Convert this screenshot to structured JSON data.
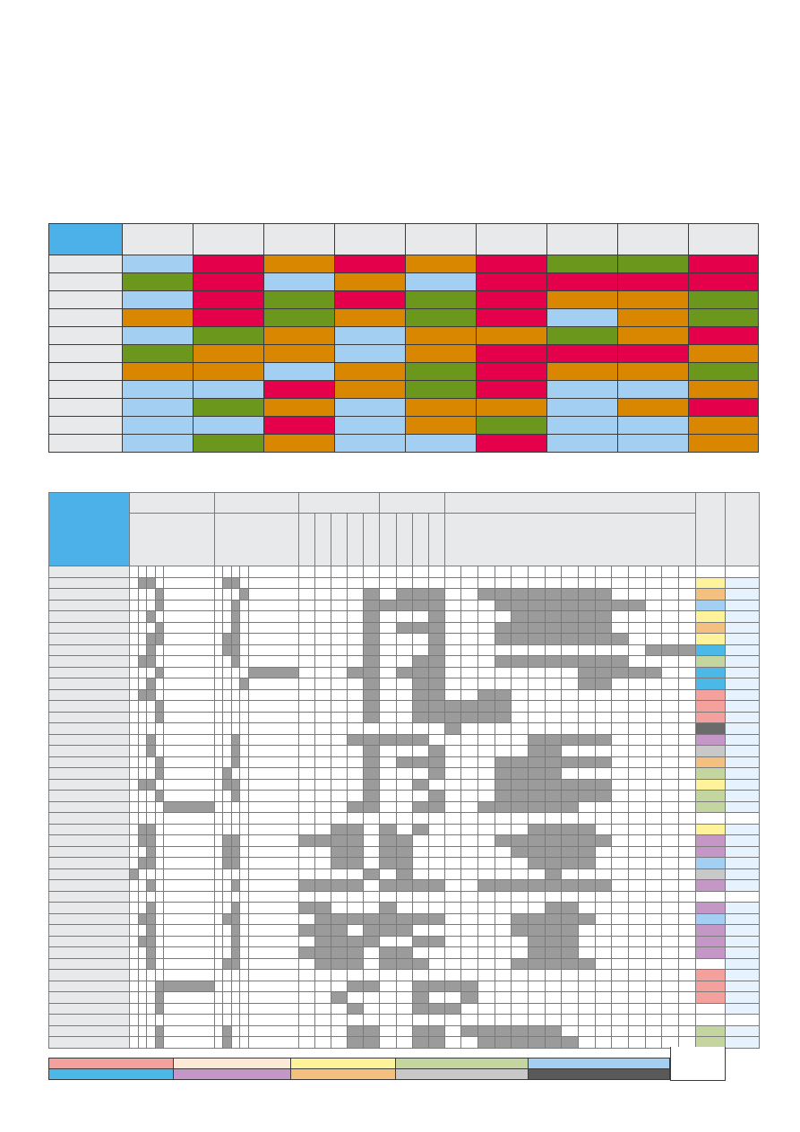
{
  "colors": {
    "light_blue": "#a3cff3",
    "red": "#e4004b",
    "orange": "#d98700",
    "green": "#6a971c",
    "header_gray": "#e8e9eb",
    "corner_blue": "#4bb1e8",
    "cell_gray": "#9b9b9b",
    "last_col_blue": "#e6f2fd"
  },
  "top_matrix": {
    "column_count": 9,
    "rows": [
      [
        "light_blue",
        "red",
        "orange",
        "red",
        "orange",
        "red",
        "green",
        "green",
        "red"
      ],
      [
        "green",
        "red",
        "light_blue",
        "orange",
        "light_blue",
        "red",
        "red",
        "red",
        "red"
      ],
      [
        "light_blue",
        "red",
        "green",
        "red",
        "green",
        "red",
        "orange",
        "orange",
        "green"
      ],
      [
        "orange",
        "red",
        "green",
        "orange",
        "green",
        "red",
        "light_blue",
        "orange",
        "green"
      ],
      [
        "light_blue",
        "green",
        "orange",
        "light_blue",
        "orange",
        "orange",
        "green",
        "orange",
        "red"
      ],
      [
        "green",
        "orange",
        "orange",
        "light_blue",
        "orange",
        "red",
        "red",
        "red",
        "orange"
      ],
      [
        "orange",
        "orange",
        "light_blue",
        "orange",
        "green",
        "red",
        "orange",
        "orange",
        "green"
      ],
      [
        "light_blue",
        "light_blue",
        "red",
        "orange",
        "green",
        "red",
        "light_blue",
        "light_blue",
        "orange"
      ],
      [
        "light_blue",
        "green",
        "orange",
        "light_blue",
        "orange",
        "orange",
        "light_blue",
        "orange",
        "red"
      ],
      [
        "light_blue",
        "light_blue",
        "red",
        "light_blue",
        "orange",
        "green",
        "light_blue",
        "light_blue",
        "orange"
      ],
      [
        "light_blue",
        "green",
        "orange",
        "light_blue",
        "light_blue",
        "red",
        "light_blue",
        "light_blue",
        "orange"
      ]
    ]
  },
  "bottom_matrix": {
    "row_count": 43,
    "column_count": 38,
    "swatch_colors": [
      "#ffffff",
      "#fef39a",
      "#f3c080",
      "#a3cff3",
      "#fef39a",
      "#f3c080",
      "#fef39a",
      "#4bb8e8",
      "#c5d5a0",
      "#4bb8e8",
      "#4bb8e8",
      "#f4a09c",
      "#f4a09c",
      "#f4a09c",
      "#6b6b6b",
      "#c497c6",
      "#c8c8c8",
      "#f3c080",
      "#c5d5a0",
      "#fef39a",
      "#c5d5a0",
      "#c5d5a0",
      "#ffffff",
      "#fef39a",
      "#c497c6",
      "#c497c6",
      "#a3cff3",
      "#c8c8c8",
      "#c497c6",
      "#ffffff",
      "#c497c6",
      "#a3cff3",
      "#c497c6",
      "#c497c6",
      "#c497c6",
      "#ffffff",
      "#f4a09c",
      "#f4a09c",
      "#f4a09c",
      "#ffffff",
      "#ffffff",
      "#c5d5a0",
      "#c5d5a0"
    ],
    "filled_cells": [
      [],
      [
        1,
        2,
        6,
        7
      ],
      [
        3,
        8,
        14,
        16,
        17,
        18,
        21,
        22,
        23,
        24,
        25,
        26,
        27,
        28
      ],
      [
        3,
        7,
        14,
        15,
        16,
        17,
        18,
        22,
        23,
        24,
        25,
        26,
        27,
        28,
        29,
        30
      ],
      [
        2,
        7,
        14,
        18,
        23,
        24,
        25,
        26,
        27,
        28
      ],
      [
        3,
        7,
        14,
        16,
        17,
        18,
        22,
        23,
        24,
        25,
        26,
        27,
        28
      ],
      [
        2,
        3,
        6,
        7,
        14,
        18,
        22,
        23,
        24,
        25,
        26,
        27,
        28,
        29
      ],
      [
        2,
        6,
        7,
        14,
        18,
        31,
        32,
        33
      ],
      [
        1,
        2,
        7,
        14,
        17,
        18,
        22,
        23,
        24,
        25,
        26,
        27,
        28,
        29
      ],
      [
        3,
        9,
        13,
        14,
        16,
        17,
        18,
        27,
        28,
        29,
        30,
        31
      ],
      [
        2,
        8,
        14,
        17,
        18,
        27,
        28
      ],
      [
        1,
        2,
        14,
        17,
        18,
        21,
        22
      ],
      [
        3,
        14,
        17,
        18,
        19,
        20,
        21,
        22
      ],
      [
        3,
        14,
        17,
        18,
        19,
        20,
        21,
        22
      ],
      [
        19
      ],
      [
        2,
        7,
        13,
        14,
        15,
        16,
        17,
        24,
        25,
        26,
        27,
        28
      ],
      [
        2,
        7,
        14,
        18,
        24,
        25
      ],
      [
        3,
        7,
        14,
        16,
        17,
        18,
        22,
        23,
        24,
        25,
        26,
        27,
        28
      ],
      [
        3,
        6,
        14,
        18,
        22,
        23,
        24,
        25
      ],
      [
        1,
        2,
        6,
        7,
        14,
        17,
        22,
        23,
        24,
        25,
        26,
        27,
        28
      ],
      [
        3,
        7,
        14,
        18,
        22,
        23,
        24,
        25,
        26,
        27,
        28
      ],
      [
        4,
        13,
        14,
        17,
        18,
        21,
        22,
        23,
        24,
        25,
        26
      ],
      [],
      [
        1,
        2,
        12,
        13,
        15,
        17,
        24,
        25,
        26,
        27
      ],
      [
        1,
        2,
        6,
        7,
        10,
        11,
        12,
        13,
        15,
        16,
        22,
        23,
        24,
        25,
        26,
        27,
        28
      ],
      [
        2,
        6,
        7,
        12,
        13,
        15,
        16,
        23,
        24,
        25,
        26,
        27
      ],
      [
        1,
        2,
        6,
        7,
        12,
        13,
        15,
        16,
        24,
        25,
        26,
        27
      ],
      [
        0,
        14,
        16,
        25
      ],
      [
        2,
        7,
        10,
        11,
        12,
        13,
        15,
        16,
        17,
        18,
        21,
        22,
        23,
        24,
        25,
        26,
        27,
        28
      ],
      [],
      [
        2,
        7,
        10,
        11,
        15,
        25,
        26
      ],
      [
        1,
        2,
        6,
        7,
        11,
        12,
        13,
        14,
        15,
        16,
        17,
        18,
        23,
        24,
        25,
        26,
        27
      ],
      [
        2,
        7,
        10,
        11,
        12,
        14,
        15,
        16,
        23,
        24,
        25,
        26
      ],
      [
        1,
        2,
        7,
        11,
        12,
        13,
        14,
        17,
        18,
        24,
        25,
        26
      ],
      [
        2,
        7,
        10,
        11,
        12,
        13,
        15,
        16,
        24,
        25,
        26
      ],
      [
        2,
        6,
        7,
        11,
        12,
        13,
        15,
        16,
        17,
        23,
        24,
        25,
        26,
        27
      ],
      [],
      [
        3,
        4,
        13,
        14,
        17,
        18,
        19,
        20
      ],
      [
        3,
        12,
        17,
        20
      ],
      [
        3,
        13,
        17,
        18,
        19
      ],
      [],
      [
        3,
        6,
        13,
        14,
        17,
        18,
        20,
        21,
        22,
        23,
        24,
        25
      ],
      [
        3,
        6,
        13,
        14,
        17,
        18,
        21,
        22,
        23,
        24,
        25,
        26
      ]
    ]
  },
  "legend": {
    "row1": [
      "#f4a09c",
      "#fde9d5",
      "#fef39a",
      "#c5d5a0",
      "#a3cff3"
    ],
    "row2": [
      "#4bb8e8",
      "#c497c6",
      "#f3c080",
      "#c8c8c8",
      "#595959"
    ]
  }
}
